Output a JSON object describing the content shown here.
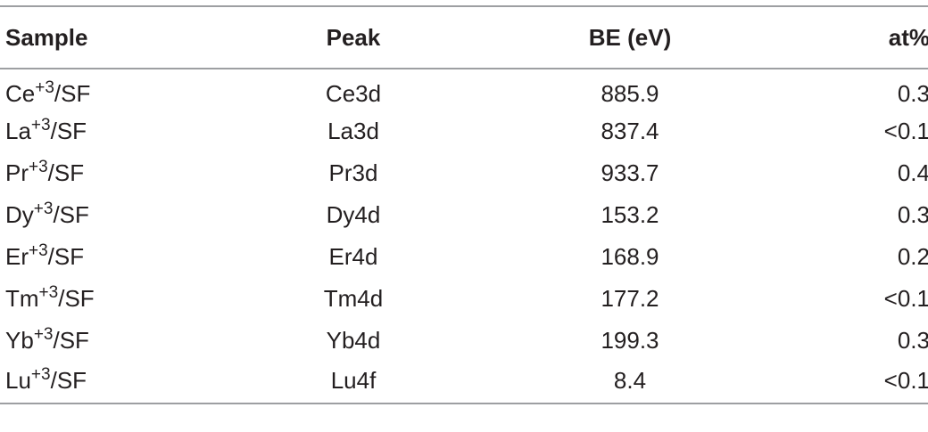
{
  "table": {
    "headers": {
      "sample": "Sample",
      "peak": "Peak",
      "be": "BE (eV)",
      "at": "at%"
    },
    "rows": [
      {
        "element": "Ce",
        "charge": "+3",
        "suffix": "/SF",
        "peak": "Ce3d",
        "be": "885.9",
        "at": "0.3"
      },
      {
        "element": "La",
        "charge": "+3",
        "suffix": "/SF",
        "peak": "La3d",
        "be": "837.4",
        "at": "<0.1"
      },
      {
        "element": "Pr",
        "charge": "+3",
        "suffix": "/SF",
        "peak": "Pr3d",
        "be": "933.7",
        "at": "0.4"
      },
      {
        "element": "Dy",
        "charge": "+3",
        "suffix": "/SF",
        "peak": "Dy4d",
        "be": "153.2",
        "at": "0.3"
      },
      {
        "element": "Er",
        "charge": "+3",
        "suffix": "/SF",
        "peak": "Er4d",
        "be": "168.9",
        "at": "0.2"
      },
      {
        "element": "Tm",
        "charge": "+3",
        "suffix": "/SF",
        "peak": "Tm4d",
        "be": "177.2",
        "at": "<0.1"
      },
      {
        "element": "Yb",
        "charge": "+3",
        "suffix": "/SF",
        "peak": "Yb4d",
        "be": "199.3",
        "at": "0.3"
      },
      {
        "element": "Lu",
        "charge": "+3",
        "suffix": "/SF",
        "peak": "Lu4f",
        "be": "8.4",
        "at": "<0.1"
      }
    ]
  }
}
